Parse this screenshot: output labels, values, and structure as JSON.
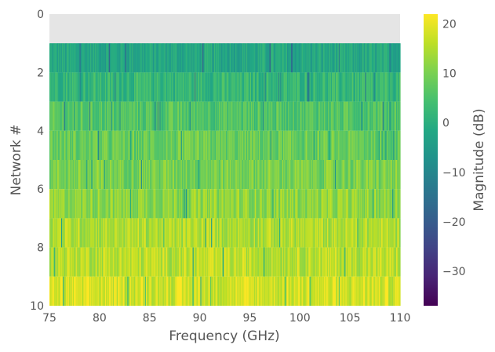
{
  "chart_data": {
    "type": "heatmap",
    "title": "",
    "xlabel": "Frequency (GHz)",
    "ylabel": "Network #",
    "colorbar_label": "Magnitude (dB)",
    "colormap": "viridis",
    "xlim": [
      75,
      110
    ],
    "ylim": [
      10,
      0
    ],
    "x_ticks": [
      75,
      80,
      85,
      90,
      95,
      100,
      105,
      110
    ],
    "y_ticks": [
      0,
      2,
      4,
      6,
      8,
      10
    ],
    "colorbar_range": [
      -37,
      22
    ],
    "colorbar_ticks": [
      20,
      10,
      0,
      -10,
      -20,
      -30
    ],
    "colorbar_tick_labels": [
      "20",
      "10",
      "0",
      "−10",
      "−20",
      "−30"
    ],
    "empty_row_color": "#e5e5e5",
    "rows": [
      {
        "network": 0,
        "has_data": false
      },
      {
        "network": 1,
        "has_data": true,
        "mean_db": -2
      },
      {
        "network": 2,
        "has_data": true,
        "mean_db": 2
      },
      {
        "network": 3,
        "has_data": true,
        "mean_db": 6
      },
      {
        "network": 4,
        "has_data": true,
        "mean_db": 8
      },
      {
        "network": 5,
        "has_data": true,
        "mean_db": 10
      },
      {
        "network": 6,
        "has_data": true,
        "mean_db": 12
      },
      {
        "network": 7,
        "has_data": true,
        "mean_db": 15
      },
      {
        "network": 8,
        "has_data": true,
        "mean_db": 16
      },
      {
        "network": 9,
        "has_data": true,
        "mean_db": 18
      }
    ],
    "grid": false,
    "legend": "none"
  }
}
